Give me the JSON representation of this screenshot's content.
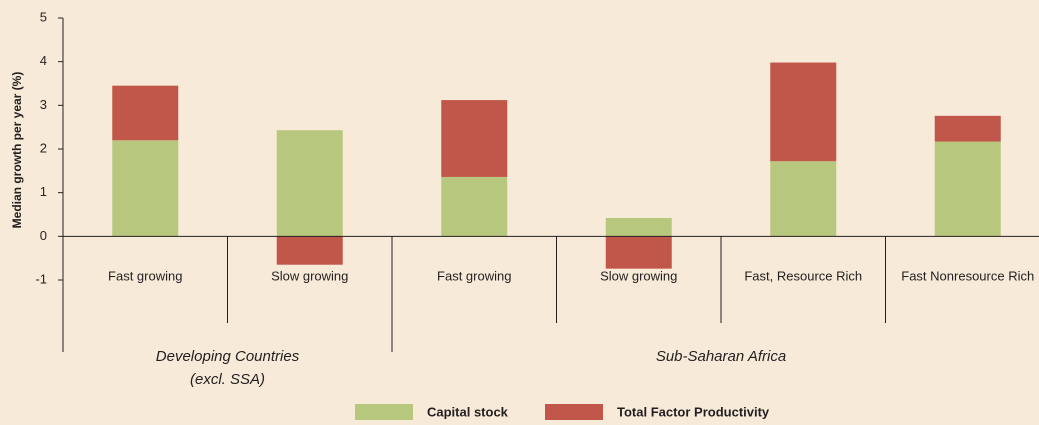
{
  "chart_data": {
    "type": "stacked-bar",
    "ylabel": "Median growth per year (%)",
    "groups": [
      {
        "name": [
          "Developing Countries",
          "(excl. SSA)"
        ],
        "categories": [
          "Fast growing",
          "Slow growing"
        ]
      },
      {
        "name": [
          "Sub-Saharan Africa"
        ],
        "categories": [
          "Fast growing",
          "Slow growing",
          "Fast, Resource Rich",
          "Fast Nonresource Rich"
        ]
      }
    ],
    "series": [
      {
        "name": "Capital stock",
        "color": "#b8c77e",
        "values": [
          2.2,
          2.43,
          1.36,
          0.42,
          1.72,
          2.17
        ]
      },
      {
        "name": "Total Factor Productivity",
        "color": "#c1574a",
        "values": [
          1.25,
          -0.65,
          1.76,
          -0.74,
          2.26,
          0.59
        ]
      }
    ],
    "ylim": [
      -1,
      5
    ],
    "yticks": [
      -1,
      0,
      1,
      2,
      3,
      4,
      5
    ]
  }
}
